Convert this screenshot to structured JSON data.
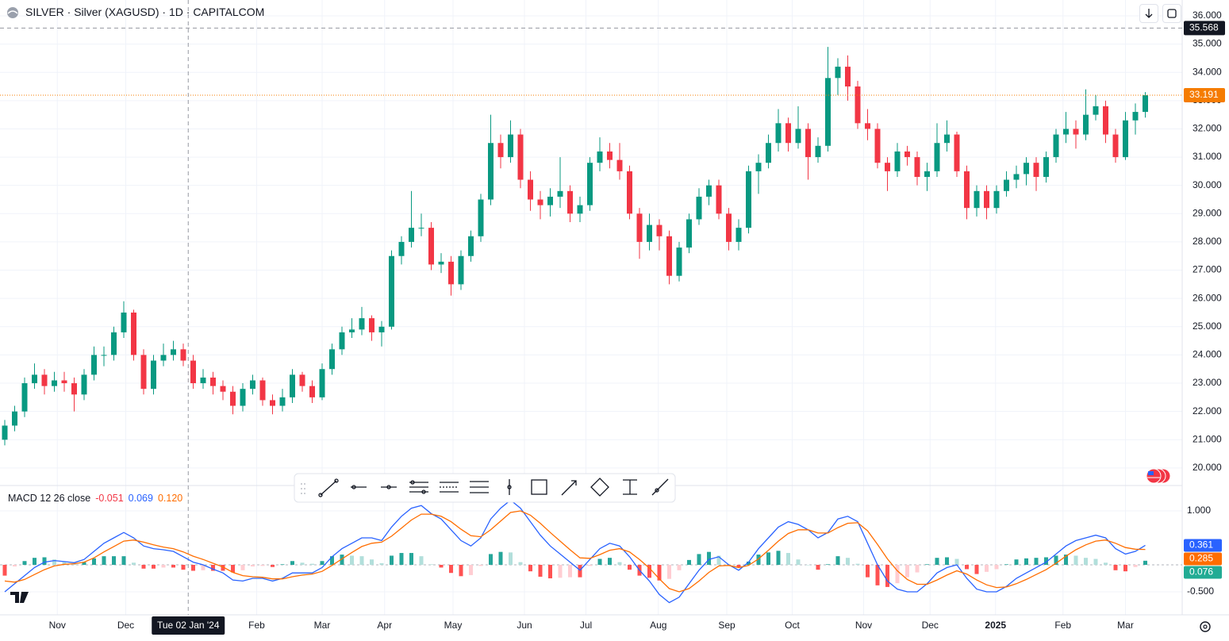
{
  "chart_data": [
    {
      "type": "candlestick",
      "title": "SILVER · Silver (XAGUSD) · 1D · CAPITALCOM",
      "up_color": "#089981",
      "down_color": "#f23645",
      "ylim": [
        19.38,
        36.56
      ],
      "yticks": [
        {
          "value": 20,
          "label": "20.000"
        },
        {
          "value": 21,
          "label": "21.000"
        },
        {
          "value": 22,
          "label": "22.000"
        },
        {
          "value": 23,
          "label": "23.000"
        },
        {
          "value": 24,
          "label": "24.000"
        },
        {
          "value": 25,
          "label": "25.000"
        },
        {
          "value": 26,
          "label": "26.000"
        },
        {
          "value": 27,
          "label": "27.000"
        },
        {
          "value": 28,
          "label": "28.000"
        },
        {
          "value": 29,
          "label": "29.000"
        },
        {
          "value": 30,
          "label": "30.000"
        },
        {
          "value": 31,
          "label": "31.000"
        },
        {
          "value": 32,
          "label": "32.000"
        },
        {
          "value": 33,
          "label": "33.000"
        },
        {
          "value": 34,
          "label": "34.000"
        },
        {
          "value": 35,
          "label": "35.000"
        },
        {
          "value": 36,
          "label": "36.000"
        }
      ],
      "xticks": [
        {
          "value": 5.3,
          "label": "Nov"
        },
        {
          "value": 12.2,
          "label": "Dec"
        },
        {
          "value": 25.4,
          "label": "Feb"
        },
        {
          "value": 32,
          "label": "Mar"
        },
        {
          "value": 38.3,
          "label": "Apr"
        },
        {
          "value": 45.2,
          "label": "May"
        },
        {
          "value": 52.4,
          "label": "Jun"
        },
        {
          "value": 58.6,
          "label": "Jul"
        },
        {
          "value": 65.9,
          "label": "Aug"
        },
        {
          "value": 72.8,
          "label": "Sep"
        },
        {
          "value": 79.4,
          "label": "Oct"
        },
        {
          "value": 86.6,
          "label": "Nov"
        },
        {
          "value": 93.3,
          "label": "Dec"
        },
        {
          "value": 99.9,
          "label": "2025",
          "bold": true
        },
        {
          "value": 106.7,
          "label": "Feb"
        },
        {
          "value": 113,
          "label": "Mar"
        }
      ],
      "grid": true,
      "crosshair": {
        "x": 18.5,
        "label": "Tue 02 Jan '24",
        "y": 35.568,
        "color": "#131722"
      },
      "last_price": 33.191,
      "last_price_color": "#f57c00",
      "candles": [
        [
          21.0,
          21.7,
          20.8,
          21.5
        ],
        [
          21.5,
          22.2,
          21.3,
          22.0
        ],
        [
          22.0,
          23.2,
          21.8,
          23.0
        ],
        [
          23.0,
          23.7,
          22.8,
          23.3
        ],
        [
          23.3,
          23.5,
          22.6,
          22.9
        ],
        [
          22.9,
          23.4,
          22.7,
          23.1
        ],
        [
          23.1,
          23.4,
          22.7,
          23.0
        ],
        [
          23.0,
          23.2,
          22.0,
          22.6
        ],
        [
          22.6,
          23.5,
          22.4,
          23.3
        ],
        [
          23.3,
          24.3,
          23.1,
          24.0
        ],
        [
          24.0,
          24.3,
          23.6,
          24.0
        ],
        [
          24.0,
          25.0,
          23.8,
          24.8
        ],
        [
          24.8,
          25.9,
          24.6,
          25.5
        ],
        [
          25.5,
          25.6,
          23.8,
          24.0
        ],
        [
          24.0,
          24.2,
          22.6,
          22.8
        ],
        [
          22.8,
          24.0,
          22.6,
          23.8
        ],
        [
          23.8,
          24.4,
          23.6,
          24.0
        ],
        [
          24.0,
          24.5,
          23.8,
          24.2
        ],
        [
          24.2,
          24.4,
          23.6,
          23.8
        ],
        [
          23.8,
          24.0,
          22.8,
          23.0
        ],
        [
          23.0,
          23.5,
          22.8,
          23.2
        ],
        [
          23.2,
          23.4,
          22.6,
          22.9
        ],
        [
          22.9,
          23.1,
          22.4,
          22.7
        ],
        [
          22.7,
          22.9,
          21.9,
          22.2
        ],
        [
          22.2,
          23.0,
          22.0,
          22.8
        ],
        [
          22.8,
          23.3,
          22.6,
          23.1
        ],
        [
          23.1,
          23.2,
          22.2,
          22.4
        ],
        [
          22.4,
          22.6,
          21.9,
          22.2
        ],
        [
          22.2,
          22.8,
          22.0,
          22.5
        ],
        [
          22.5,
          23.5,
          22.3,
          23.3
        ],
        [
          23.3,
          23.4,
          22.7,
          22.9
        ],
        [
          22.9,
          23.1,
          22.3,
          22.5
        ],
        [
          22.5,
          23.7,
          22.4,
          23.5
        ],
        [
          23.5,
          24.4,
          23.3,
          24.2
        ],
        [
          24.2,
          25.0,
          24.0,
          24.8
        ],
        [
          24.8,
          25.3,
          24.6,
          24.9
        ],
        [
          24.9,
          25.7,
          24.7,
          25.3
        ],
        [
          25.3,
          25.4,
          24.5,
          24.8
        ],
        [
          24.8,
          25.2,
          24.3,
          25.0
        ],
        [
          25.0,
          27.7,
          24.9,
          27.5
        ],
        [
          27.5,
          28.2,
          27.2,
          28.0
        ],
        [
          28.0,
          29.8,
          27.8,
          28.5
        ],
        [
          28.5,
          29.0,
          28.2,
          28.5
        ],
        [
          28.5,
          28.7,
          27.0,
          27.2
        ],
        [
          27.2,
          27.6,
          26.9,
          27.3
        ],
        [
          27.3,
          27.5,
          26.1,
          26.5
        ],
        [
          26.5,
          27.7,
          26.3,
          27.5
        ],
        [
          27.5,
          28.4,
          27.3,
          28.2
        ],
        [
          28.2,
          29.7,
          28.0,
          29.5
        ],
        [
          29.5,
          32.5,
          29.3,
          31.5
        ],
        [
          31.5,
          31.8,
          30.6,
          31.0
        ],
        [
          31.0,
          32.3,
          30.8,
          31.8
        ],
        [
          31.8,
          32.0,
          29.9,
          30.2
        ],
        [
          30.2,
          30.5,
          29.1,
          29.5
        ],
        [
          29.5,
          29.8,
          28.8,
          29.3
        ],
        [
          29.3,
          29.9,
          28.9,
          29.6
        ],
        [
          29.6,
          31.0,
          29.2,
          29.8
        ],
        [
          29.8,
          30.0,
          28.7,
          29.0
        ],
        [
          29.0,
          29.6,
          28.7,
          29.3
        ],
        [
          29.3,
          31.0,
          29.1,
          30.8
        ],
        [
          30.8,
          31.7,
          30.5,
          31.2
        ],
        [
          31.2,
          31.5,
          30.6,
          30.9
        ],
        [
          30.9,
          31.5,
          30.2,
          30.5
        ],
        [
          30.5,
          30.7,
          28.8,
          29.0
        ],
        [
          29.0,
          29.2,
          27.4,
          28.0
        ],
        [
          28.0,
          29.0,
          27.7,
          28.6
        ],
        [
          28.6,
          28.8,
          27.7,
          28.2
        ],
        [
          28.2,
          28.4,
          26.5,
          26.8
        ],
        [
          26.8,
          28.0,
          26.6,
          27.8
        ],
        [
          27.8,
          29.0,
          27.6,
          28.8
        ],
        [
          28.8,
          29.9,
          28.6,
          29.6
        ],
        [
          29.6,
          30.2,
          29.3,
          30.0
        ],
        [
          30.0,
          30.2,
          28.8,
          29.0
        ],
        [
          29.0,
          29.2,
          27.7,
          28.0
        ],
        [
          28.0,
          28.8,
          27.7,
          28.5
        ],
        [
          28.5,
          30.7,
          28.3,
          30.5
        ],
        [
          30.5,
          31.1,
          29.7,
          30.8
        ],
        [
          30.8,
          31.8,
          30.6,
          31.5
        ],
        [
          31.5,
          32.7,
          31.2,
          32.2
        ],
        [
          32.2,
          32.4,
          31.2,
          31.5
        ],
        [
          31.5,
          32.8,
          31.3,
          32.0
        ],
        [
          32.0,
          32.2,
          30.2,
          31.0
        ],
        [
          31.0,
          31.7,
          30.8,
          31.4
        ],
        [
          31.4,
          34.9,
          31.2,
          33.8
        ],
        [
          33.8,
          34.5,
          33.2,
          34.2
        ],
        [
          34.2,
          34.6,
          33.0,
          33.5
        ],
        [
          33.5,
          33.7,
          32.0,
          32.2
        ],
        [
          32.2,
          32.7,
          31.6,
          32.0
        ],
        [
          32.0,
          32.2,
          30.6,
          30.8
        ],
        [
          30.8,
          31.0,
          29.8,
          30.5
        ],
        [
          30.5,
          31.5,
          30.3,
          31.2
        ],
        [
          31.2,
          31.4,
          30.7,
          31.0
        ],
        [
          31.0,
          31.2,
          30.0,
          30.3
        ],
        [
          30.3,
          30.8,
          29.8,
          30.5
        ],
        [
          30.5,
          32.2,
          30.3,
          31.5
        ],
        [
          31.5,
          32.3,
          31.2,
          31.8
        ],
        [
          31.8,
          31.9,
          30.3,
          30.5
        ],
        [
          30.5,
          30.7,
          28.8,
          29.2
        ],
        [
          29.2,
          30.0,
          28.9,
          29.8
        ],
        [
          29.8,
          30.0,
          28.8,
          29.2
        ],
        [
          29.2,
          30.0,
          29.0,
          29.8
        ],
        [
          29.8,
          30.5,
          29.6,
          30.2
        ],
        [
          30.2,
          30.7,
          29.9,
          30.4
        ],
        [
          30.4,
          31.0,
          30.0,
          30.8
        ],
        [
          30.8,
          31.0,
          29.8,
          30.3
        ],
        [
          30.3,
          31.2,
          30.1,
          31.0
        ],
        [
          31.0,
          32.0,
          30.8,
          31.8
        ],
        [
          31.8,
          32.6,
          31.5,
          32.0
        ],
        [
          32.0,
          32.3,
          31.3,
          31.8
        ],
        [
          31.8,
          33.4,
          31.6,
          32.5
        ],
        [
          32.5,
          33.2,
          32.3,
          32.8
        ],
        [
          32.8,
          33.0,
          31.5,
          31.8
        ],
        [
          31.8,
          32.0,
          30.8,
          31.0
        ],
        [
          31.0,
          32.6,
          30.9,
          32.3
        ],
        [
          32.3,
          32.9,
          31.8,
          32.6
        ],
        [
          32.6,
          33.3,
          32.4,
          33.191
        ]
      ]
    },
    {
      "type": "macd",
      "title": "MACD 12 26 close",
      "ylim": [
        -0.926,
        1.47
      ],
      "yticks": [
        {
          "value": 1,
          "label": "1.000"
        },
        {
          "value": -0.5,
          "label": "-0.500"
        }
      ],
      "zero_line": 0,
      "legend": [
        {
          "value": -0.051,
          "label": "-0.051",
          "color": "#f23645"
        },
        {
          "value": 0.069,
          "label": "0.069",
          "color": "#2962ff"
        },
        {
          "value": 0.12,
          "label": "0.120",
          "color": "#ff6d00"
        }
      ],
      "histogram": {
        "colors": {
          "pos_rising": "#26a69a",
          "pos_falling": "#b2dfdb",
          "neg_falling": "#ff5252",
          "neg_rising": "#ffcdd2"
        },
        "label_color": "#22ab94",
        "last": 0.076,
        "values": [
          -0.2,
          -0.03,
          0.07,
          0.13,
          0.14,
          0.1,
          0.05,
          0.02,
          0.05,
          0.12,
          0.16,
          0.16,
          0.16,
          0.04,
          -0.07,
          -0.07,
          -0.05,
          -0.05,
          -0.09,
          -0.11,
          -0.1,
          -0.11,
          -0.11,
          -0.14,
          -0.1,
          -0.03,
          -0.02,
          -0.04,
          0.01,
          0.07,
          0.04,
          0.02,
          0.07,
          0.16,
          0.19,
          0.17,
          0.16,
          0.1,
          0.03,
          0.17,
          0.22,
          0.22,
          0.16,
          0.01,
          -0.05,
          -0.15,
          -0.21,
          -0.19,
          -0.02,
          0.2,
          0.24,
          0.23,
          0.05,
          -0.12,
          -0.22,
          -0.25,
          -0.24,
          -0.23,
          -0.23,
          -0.02,
          0.11,
          0.13,
          0.05,
          -0.09,
          -0.2,
          -0.24,
          -0.29,
          -0.26,
          -0.1,
          0.09,
          0.2,
          0.24,
          0.17,
          0.01,
          -0.05,
          0.06,
          0.19,
          0.23,
          0.26,
          0.22,
          0.1,
          0,
          -0.09,
          0.01,
          0.16,
          0.13,
          0.02,
          -0.23,
          -0.38,
          -0.41,
          -0.34,
          -0.23,
          -0.14,
          0.01,
          0.13,
          0.14,
          0.11,
          -0.08,
          -0.17,
          -0.13,
          -0.08,
          0.01,
          0.1,
          0.12,
          0.13,
          0.14,
          0.17,
          0.19,
          0.17,
          0.13,
          0.11,
          0.04,
          -0.1,
          -0.12,
          -0.04,
          0.076
        ]
      },
      "series": [
        {
          "color": "#2962ff",
          "last": 0.361,
          "values": [
            -0.5,
            -0.35,
            -0.2,
            -0.05,
            0.05,
            0.08,
            0.06,
            0.04,
            0.1,
            0.25,
            0.4,
            0.5,
            0.6,
            0.5,
            0.35,
            0.3,
            0.28,
            0.25,
            0.15,
            0.05,
            0,
            -0.08,
            -0.15,
            -0.28,
            -0.3,
            -0.25,
            -0.25,
            -0.3,
            -0.25,
            -0.15,
            -0.15,
            -0.15,
            -0.05,
            0.15,
            0.3,
            0.4,
            0.5,
            0.5,
            0.45,
            0.7,
            0.9,
            1.05,
            1.1,
            0.95,
            0.85,
            0.65,
            0.45,
            0.35,
            0.5,
            0.85,
            1.05,
            1.2,
            1.05,
            0.8,
            0.55,
            0.35,
            0.2,
            0.05,
            -0.1,
            0.1,
            0.3,
            0.4,
            0.35,
            0.15,
            -0.1,
            -0.3,
            -0.55,
            -0.7,
            -0.6,
            -0.35,
            -0.1,
            0.1,
            0.15,
            0,
            -0.1,
            0.05,
            0.3,
            0.5,
            0.7,
            0.8,
            0.75,
            0.65,
            0.5,
            0.6,
            0.85,
            0.9,
            0.8,
            0.4,
            0,
            -0.3,
            -0.45,
            -0.5,
            -0.5,
            -0.35,
            -0.15,
            -0.05,
            0,
            -0.25,
            -0.45,
            -0.5,
            -0.5,
            -0.4,
            -0.25,
            -0.15,
            -0.05,
            0.05,
            0.2,
            0.35,
            0.45,
            0.5,
            0.55,
            0.5,
            0.3,
            0.2,
            0.25,
            0.361
          ]
        },
        {
          "color": "#ff6d00",
          "last": 0.285,
          "values": [
            -0.3,
            -0.32,
            -0.27,
            -0.18,
            -0.09,
            -0.02,
            0.01,
            0.02,
            0.05,
            0.13,
            0.24,
            0.34,
            0.44,
            0.46,
            0.42,
            0.37,
            0.33,
            0.3,
            0.24,
            0.16,
            0.1,
            0.03,
            -0.04,
            -0.14,
            -0.2,
            -0.22,
            -0.23,
            -0.26,
            -0.26,
            -0.22,
            -0.19,
            -0.17,
            -0.12,
            -0.01,
            0.11,
            0.23,
            0.34,
            0.4,
            0.42,
            0.53,
            0.68,
            0.83,
            0.94,
            0.94,
            0.9,
            0.8,
            0.66,
            0.54,
            0.52,
            0.65,
            0.81,
            0.97,
            1,
            0.92,
            0.77,
            0.6,
            0.44,
            0.28,
            0.13,
            0.12,
            0.19,
            0.27,
            0.3,
            0.24,
            0.1,
            -0.06,
            -0.26,
            -0.44,
            -0.5,
            -0.44,
            -0.3,
            -0.14,
            -0.02,
            -0.01,
            -0.05,
            -0.01,
            0.11,
            0.27,
            0.44,
            0.58,
            0.65,
            0.65,
            0.59,
            0.59,
            0.69,
            0.77,
            0.78,
            0.63,
            0.38,
            0.11,
            -0.11,
            -0.27,
            -0.36,
            -0.36,
            -0.28,
            -0.19,
            -0.11,
            -0.17,
            -0.28,
            -0.37,
            -0.42,
            -0.41,
            -0.35,
            -0.27,
            -0.18,
            -0.09,
            0.03,
            0.16,
            0.28,
            0.37,
            0.44,
            0.46,
            0.4,
            0.32,
            0.29,
            0.285
          ]
        }
      ]
    }
  ]
}
